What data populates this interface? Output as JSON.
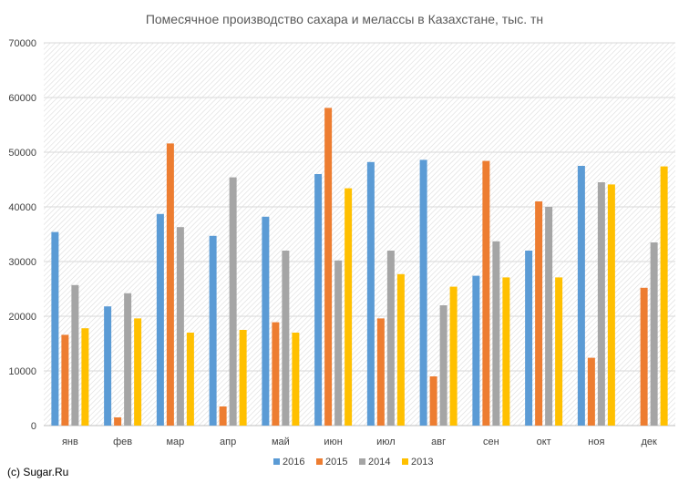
{
  "credit": "(c) Sugar.Ru",
  "chart_data": {
    "type": "bar",
    "title": "Помесячное производство сахара и мелассы в Казахстане, тыс. тн",
    "xlabel": "",
    "ylabel": "",
    "ylim": [
      0,
      70000
    ],
    "yticks": [
      0,
      10000,
      20000,
      30000,
      40000,
      50000,
      60000,
      70000
    ],
    "grid": true,
    "legend_position": "bottom",
    "categories": [
      "янв",
      "фев",
      "мар",
      "апр",
      "май",
      "июн",
      "июл",
      "авг",
      "сен",
      "окт",
      "ноя",
      "дек"
    ],
    "series": [
      {
        "name": "2016",
        "color": "#5B9BD5",
        "values": [
          35400,
          21800,
          38700,
          34700,
          38200,
          46000,
          48200,
          48600,
          27400,
          32000,
          47500,
          null
        ]
      },
      {
        "name": "2015",
        "color": "#ED7D31",
        "values": [
          16600,
          1500,
          51600,
          3500,
          18900,
          58100,
          19600,
          9000,
          48400,
          41000,
          12400,
          25200
        ]
      },
      {
        "name": "2014",
        "color": "#A5A5A5",
        "values": [
          25700,
          24200,
          36300,
          45400,
          32000,
          30200,
          32000,
          22000,
          33700,
          40000,
          44500,
          33500
        ]
      },
      {
        "name": "2013",
        "color": "#FFC000",
        "values": [
          17800,
          19600,
          17000,
          17500,
          17000,
          43400,
          27700,
          25400,
          27100,
          27100,
          44100,
          47400
        ]
      }
    ]
  }
}
